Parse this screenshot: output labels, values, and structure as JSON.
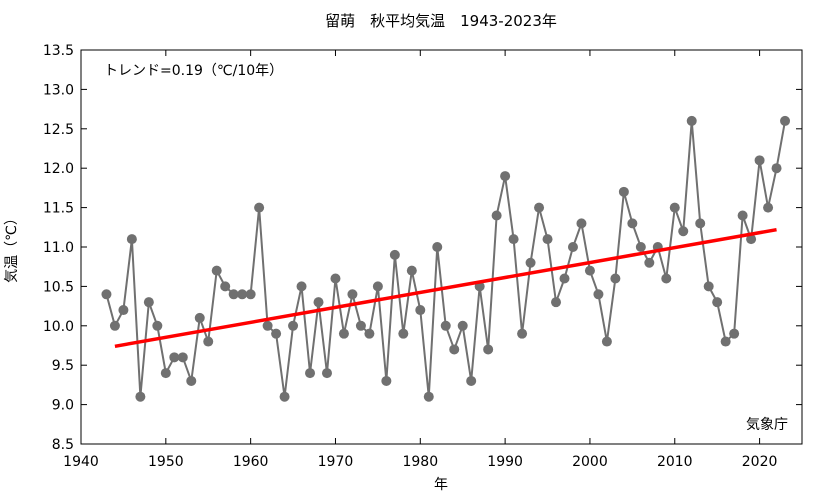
{
  "chart_data": {
    "type": "line",
    "title": "留萌　秋平均気温　1943-2023年",
    "xlabel": "年",
    "ylabel": "気温（℃）",
    "xlim": [
      1940,
      2025
    ],
    "ylim": [
      8.5,
      13.5
    ],
    "x_ticks": [
      1940,
      1950,
      1960,
      1970,
      1980,
      1990,
      2000,
      2010,
      2020
    ],
    "y_ticks": [
      8.5,
      9.0,
      9.5,
      10.0,
      10.5,
      11.0,
      11.5,
      12.0,
      12.5,
      13.0,
      13.5
    ],
    "x_tick_labels": [
      "1940",
      "1950",
      "1960",
      "1970",
      "1980",
      "1990",
      "2000",
      "2010",
      "2020"
    ],
    "y_tick_labels": [
      "8.5",
      "9.0",
      "9.5",
      "10.0",
      "10.5",
      "11.0",
      "11.5",
      "12.0",
      "12.5",
      "13.0",
      "13.5"
    ],
    "trend_text": "トレンド=0.19（℃/10年）",
    "source_text": "気象庁",
    "grid": false,
    "series": [
      {
        "color": "#707070",
        "marker_color": "#707070",
        "x": [
          1943,
          1944,
          1945,
          1946,
          1947,
          1948,
          1949,
          1950,
          1951,
          1952,
          1953,
          1954,
          1955,
          1956,
          1957,
          1958,
          1959,
          1960,
          1961,
          1962,
          1963,
          1964,
          1965,
          1966,
          1967,
          1968,
          1969,
          1970,
          1971,
          1972,
          1973,
          1974,
          1975,
          1976,
          1977,
          1978,
          1979,
          1980,
          1981,
          1982,
          1983,
          1984,
          1985,
          1986,
          1987,
          1988,
          1989,
          1990,
          1991,
          1992,
          1993,
          1994,
          1995,
          1996,
          1997,
          1998,
          1999,
          2000,
          2001,
          2002,
          2003,
          2004,
          2005,
          2006,
          2007,
          2008,
          2009,
          2010,
          2011,
          2012,
          2013,
          2014,
          2015,
          2016,
          2017,
          2018,
          2019,
          2020,
          2021,
          2022,
          2023
        ],
        "values": [
          10.4,
          10.0,
          10.2,
          11.1,
          9.1,
          10.3,
          10.0,
          9.4,
          9.6,
          9.6,
          9.3,
          10.1,
          9.8,
          10.7,
          10.5,
          10.4,
          10.4,
          10.4,
          11.5,
          10.0,
          9.9,
          9.1,
          10.0,
          10.5,
          9.4,
          10.3,
          9.4,
          10.6,
          9.9,
          10.4,
          10.0,
          9.9,
          10.5,
          9.3,
          10.9,
          9.9,
          10.7,
          10.2,
          9.1,
          11.0,
          10.0,
          9.7,
          10.0,
          9.3,
          10.5,
          9.7,
          11.4,
          11.9,
          11.1,
          9.9,
          10.8,
          11.5,
          11.1,
          10.3,
          10.6,
          11.0,
          11.3,
          10.7,
          10.4,
          9.8,
          10.6,
          11.7,
          11.3,
          11.0,
          10.8,
          11.0,
          10.6,
          11.5,
          11.2,
          12.6,
          11.3,
          10.5,
          10.3,
          9.8,
          9.9,
          11.4,
          11.1,
          12.1,
          11.5,
          12.0,
          12.6
        ]
      }
    ],
    "trend_line": {
      "color": "#ff0000",
      "x": [
        1944,
        2022
      ],
      "values": [
        9.74,
        11.22
      ]
    }
  }
}
